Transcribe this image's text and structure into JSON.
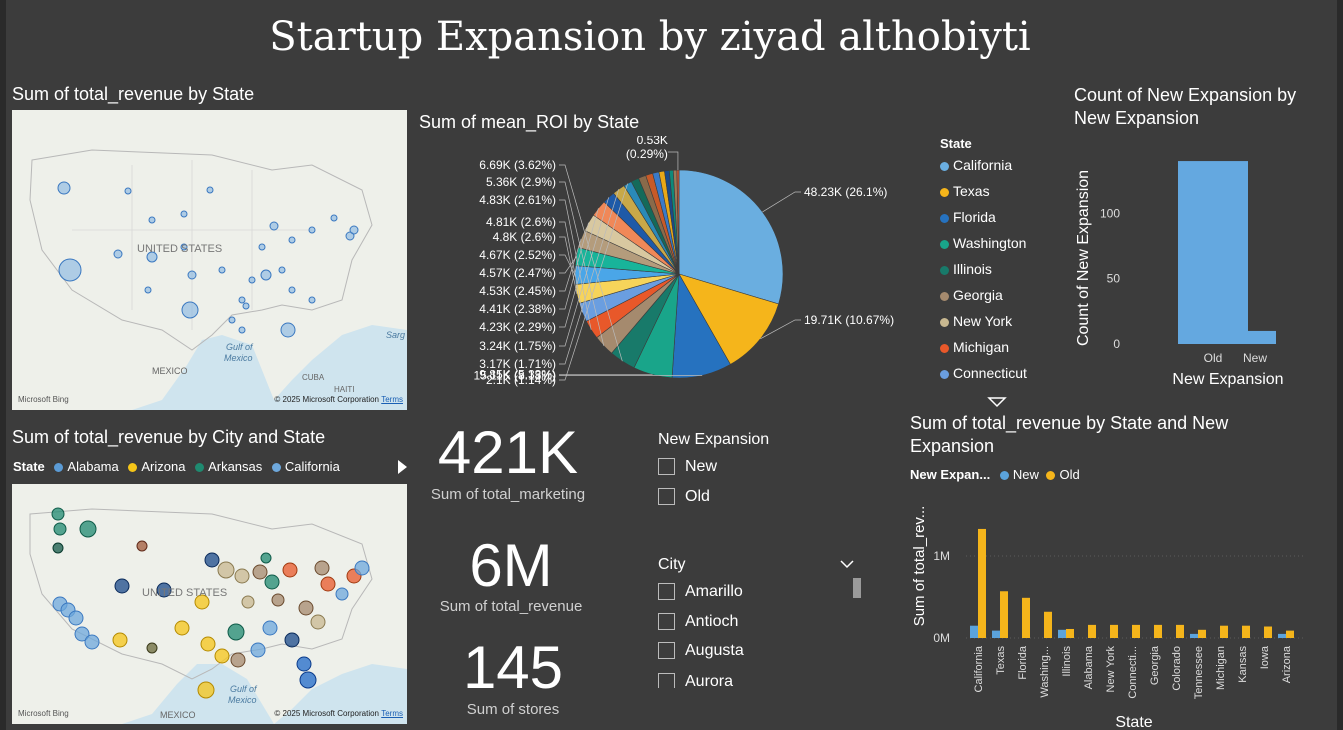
{
  "title": "Startup Expansion by ziyad althobiyti",
  "map1": {
    "title": "Sum of total_revenue by State",
    "labels": {
      "country": "UNITED STATES",
      "gulf": "Gulf of Mexico",
      "gulf1": "Gulf of",
      "gulf2": "Mexico",
      "mexico": "MEXICO",
      "cuba": "CUBA",
      "haiti": "HAITI",
      "sarg": "Sarg"
    },
    "bing": "Microsoft Bing",
    "copyright": "© 2025 Microsoft Corporation",
    "terms": "Terms"
  },
  "map2": {
    "title": "Sum of total_revenue by City and State",
    "legend_label": "State",
    "legend": [
      {
        "name": "Alabama",
        "color": "#5b9bd5"
      },
      {
        "name": "Arizona",
        "color": "#f5c518"
      },
      {
        "name": "Arkansas",
        "color": "#1f8a70"
      },
      {
        "name": "California",
        "color": "#6ea8dc"
      }
    ],
    "labels": {
      "country": "UNITED STATES",
      "gulf1": "Gulf of",
      "gulf2": "Mexico",
      "mexico": "MEXICO"
    },
    "bing": "Microsoft Bing",
    "copyright": "© 2025 Microsoft Corporation",
    "terms": "Terms"
  },
  "pie": {
    "title": "Sum of mean_ROI by State",
    "legend_title": "State",
    "legend": [
      {
        "name": "California",
        "color": "#6aaee0"
      },
      {
        "name": "Texas",
        "color": "#f5b51b"
      },
      {
        "name": "Florida",
        "color": "#2672bf"
      },
      {
        "name": "Washington",
        "color": "#19a58a"
      },
      {
        "name": "Illinois",
        "color": "#187a6a"
      },
      {
        "name": "Georgia",
        "color": "#a58a6e"
      },
      {
        "name": "New York",
        "color": "#c8b890"
      },
      {
        "name": "Michigan",
        "color": "#e8582a"
      },
      {
        "name": "Connecticut",
        "color": "#6a9ee0"
      }
    ]
  },
  "chart_data": [
    {
      "type": "pie",
      "title": "Sum of mean_ROI by State",
      "slices": [
        {
          "label": "48.23K (26.1%)",
          "value": 48230,
          "color": "#6aaee0"
        },
        {
          "label": "19.71K (10.67%)",
          "value": 19710,
          "color": "#f5b51b"
        },
        {
          "label": "15.11K (8.18%)",
          "value": 15110,
          "color": "#2672bf"
        },
        {
          "label": "9.85K (5.33%)",
          "value": 9850,
          "color": "#19a58a"
        },
        {
          "label": "6.69K (3.62%)",
          "value": 6690,
          "color": "#187a6a"
        },
        {
          "label": "5.36K (2.9%)",
          "value": 5360,
          "color": "#a58a6e"
        },
        {
          "label": "4.83K (2.61%)",
          "value": 4830,
          "color": "#e8582a"
        },
        {
          "label": "4.81K (2.6%)",
          "value": 4810,
          "color": "#6a9ee0"
        },
        {
          "label": "4.8K (2.6%)",
          "value": 4800,
          "color": "#f7d45a"
        },
        {
          "label": "4.67K (2.52%)",
          "value": 4670,
          "color": "#4aa6e8"
        },
        {
          "label": "4.57K (2.47%)",
          "value": 4570,
          "color": "#18b49a"
        },
        {
          "label": "4.53K (2.45%)",
          "value": 4530,
          "color": "#b49c7c"
        },
        {
          "label": "4.41K (2.38%)",
          "value": 4410,
          "color": "#d8c8a0"
        },
        {
          "label": "4.23K (2.29%)",
          "value": 4230,
          "color": "#f08858"
        },
        {
          "label": "3.24K (1.75%)",
          "value": 3240,
          "color": "#1e5aa8"
        },
        {
          "label": "3.17K (1.71%)",
          "value": 3170,
          "color": "#c8a848"
        },
        {
          "label": "2.1K (1.14%)",
          "value": 2100,
          "color": "#2a8ab8"
        },
        {
          "value": 2000,
          "color": "#146a5a"
        },
        {
          "value": 1900,
          "color": "#8a6a4a"
        },
        {
          "value": 1800,
          "color": "#c85a28"
        },
        {
          "value": 1600,
          "color": "#3a7ac8"
        },
        {
          "value": 1400,
          "color": "#e8a818"
        },
        {
          "value": 1200,
          "color": "#1a4a8a"
        },
        {
          "value": 1000,
          "color": "#0e8a7a"
        },
        {
          "value": 900,
          "color": "#9a7a5a"
        },
        {
          "label": "0.53K (0.29%)",
          "value": 530,
          "color": "#d05a30"
        }
      ]
    },
    {
      "type": "bar",
      "title": "Count of New Expansion by New Expansion",
      "categories": [
        "Old",
        "New"
      ],
      "values": [
        140,
        10
      ],
      "xlabel": "New Expansion",
      "ylabel": "Count of New Expansion",
      "yticks": [
        "0",
        "50",
        "100"
      ],
      "ylim": [
        0,
        150
      ]
    },
    {
      "type": "bar",
      "title": "Sum of total_revenue by State and New Expansion",
      "categories": [
        "California",
        "Texas",
        "Florida",
        "Washing...",
        "Illinois",
        "Alabama",
        "New York",
        "Connecti...",
        "Georgia",
        "Colorado",
        "Tennessee",
        "Michigan",
        "Kansas",
        "Iowa",
        "Arizona"
      ],
      "series": [
        {
          "name": "New",
          "color": "#5ba3dc",
          "values": [
            150000,
            90000,
            0,
            0,
            100000,
            0,
            0,
            0,
            0,
            0,
            50000,
            0,
            0,
            0,
            50000
          ]
        },
        {
          "name": "Old",
          "color": "#f5b51b",
          "values": [
            1330000,
            570000,
            490000,
            320000,
            110000,
            160000,
            160000,
            160000,
            160000,
            160000,
            100000,
            150000,
            150000,
            140000,
            90000
          ]
        }
      ],
      "xlabel": "State",
      "ylabel": "Sum of total_rev...",
      "legend_title": "New Expan...",
      "yticks": [
        "0M",
        "1M"
      ],
      "ylim": [
        0,
        1500000
      ]
    }
  ],
  "bar1": {
    "title": "Count of New Expansion by New Expansion",
    "ylabel": "Count of New Expansion",
    "xlabel": "New Expansion"
  },
  "bar2": {
    "title": "Sum of total_revenue by State and New Expansion",
    "legend_title": "New Expan...",
    "ylabel": "Sum of total_rev...",
    "xlabel": "State"
  },
  "kpis": [
    {
      "value": "421K",
      "label": "Sum of total_marketing"
    },
    {
      "value": "6M",
      "label": "Sum of total_revenue"
    },
    {
      "value": "145",
      "label": "Sum of stores"
    }
  ],
  "slicers": {
    "expansion": {
      "title": "New Expansion",
      "options": [
        "New",
        "Old"
      ]
    },
    "city": {
      "title": "City",
      "options": [
        "Amarillo",
        "Antioch",
        "Augusta",
        "Aurora"
      ]
    }
  }
}
